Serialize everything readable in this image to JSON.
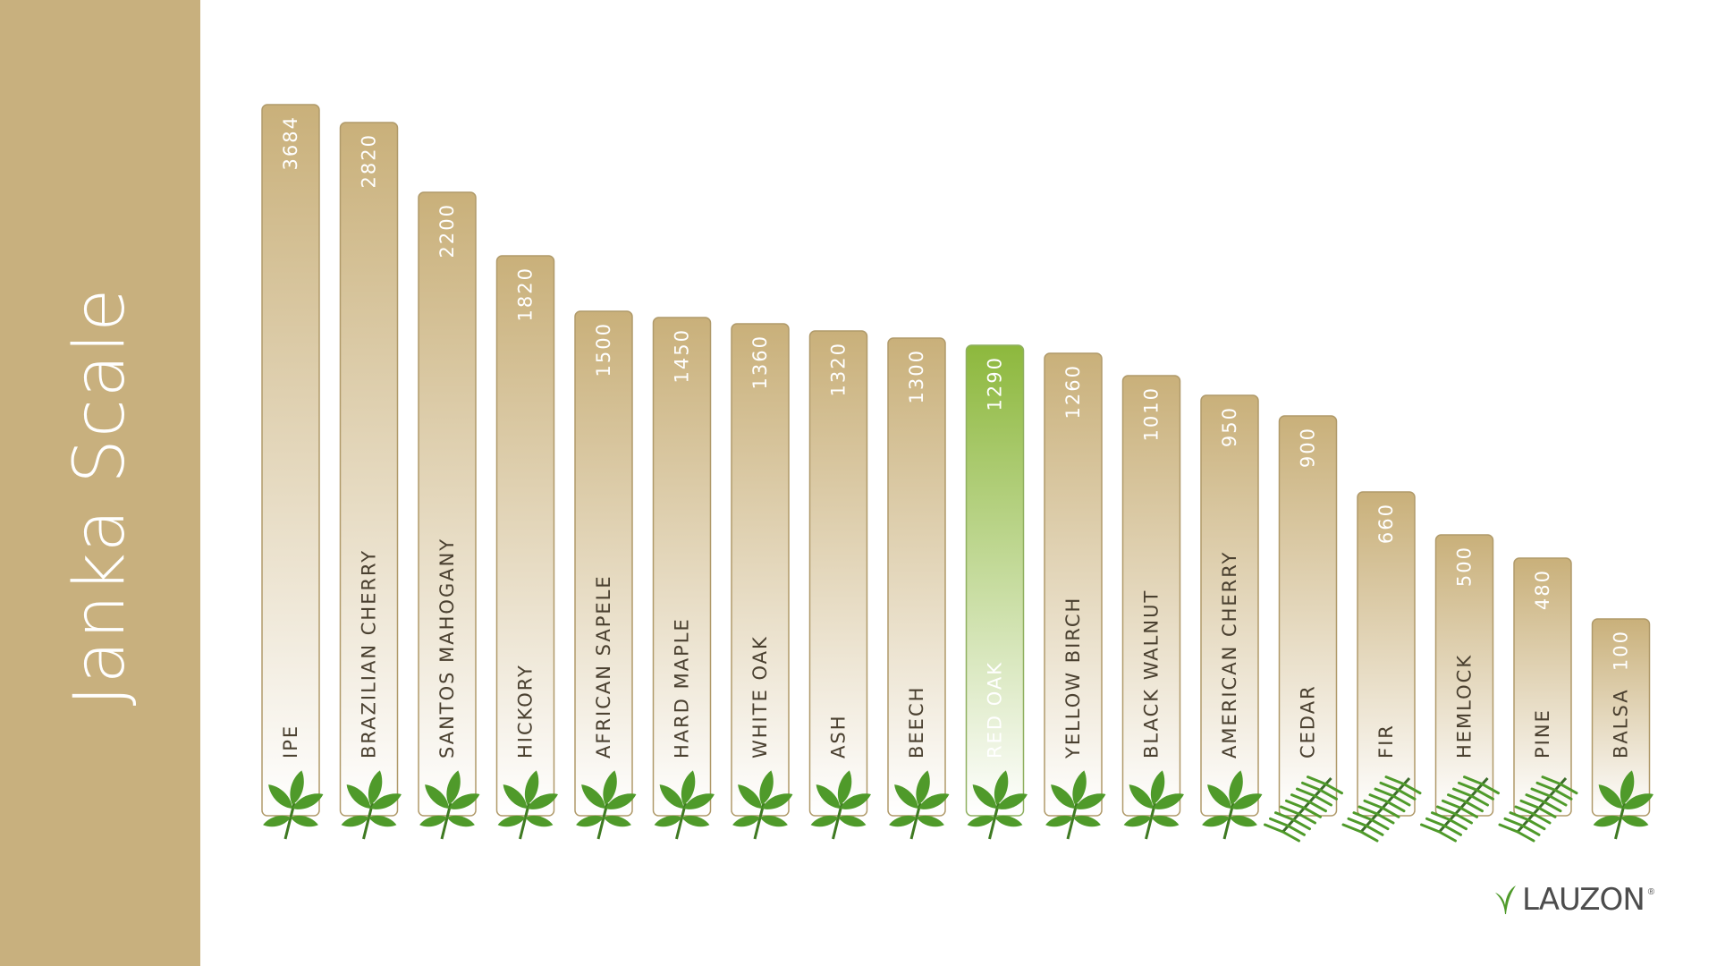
{
  "page": {
    "side_title": "Janka Scale",
    "brand": "LAUZON",
    "brand_mark": "®"
  },
  "colors": {
    "panel": "#c8b07e",
    "bar_top": "#c9b07a",
    "bar_bottom": "#ffffff",
    "bar_border": "#b09a6a",
    "highlight_top": "#8db83d",
    "highlight_bottom": "#ffffff",
    "leaf": "#4f9a2a"
  },
  "chart_data": {
    "type": "bar",
    "title": "Janka Scale",
    "categories": [
      "IPE",
      "BRAZILIAN CHERRY",
      "SANTOS MAHOGANY",
      "HICKORY",
      "AFRICAN SAPELE",
      "HARD MAPLE",
      "WHITE OAK",
      "ASH",
      "BEECH",
      "RED OAK",
      "YELLOW BIRCH",
      "BLACK WALNUT",
      "AMERICAN CHERRY",
      "CEDAR",
      "FIR",
      "HEMLOCK",
      "PINE",
      "BALSA"
    ],
    "value_labels": [
      "3684",
      "2820",
      "2200",
      "1820",
      "1500",
      "1450",
      "1360",
      "1320",
      "1300",
      "1290",
      "1260",
      "1010",
      "950",
      "900",
      "660",
      "500",
      "480",
      "100"
    ],
    "highlighted": "RED OAK",
    "icons": [
      "leaf-ipe-icon",
      "leaf-brazilian-cherry-icon",
      "leaf-santos-mahogany-icon",
      "leaf-hickory-icon",
      "leaf-african-sapele-icon",
      "leaf-hard-maple-icon",
      "leaf-white-oak-icon",
      "leaf-ash-icon",
      "leaf-beech-icon",
      "leaf-red-oak-icon",
      "leaf-yellow-birch-icon",
      "leaf-black-walnut-icon",
      "leaf-american-cherry-icon",
      "needle-cedar-icon",
      "needle-fir-icon",
      "needle-hemlock-icon",
      "needle-pine-icon",
      "leaf-balsa-icon"
    ]
  }
}
